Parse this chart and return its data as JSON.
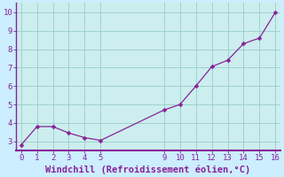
{
  "x": [
    0,
    1,
    2,
    3,
    4,
    5,
    9,
    10,
    11,
    12,
    13,
    14,
    15,
    16
  ],
  "y": [
    2.8,
    3.8,
    3.8,
    3.45,
    3.2,
    3.05,
    4.7,
    5.0,
    6.0,
    7.05,
    7.4,
    8.3,
    8.6,
    10.0
  ],
  "line_color": "#882299",
  "marker": "D",
  "marker_size": 2.5,
  "line_width": 0.9,
  "xlabel": "Windchill (Refroidissement éolien,°C)",
  "xlabel_color": "#882299",
  "xlabel_fontsize": 7.5,
  "plot_bg_color": "#cceeee",
  "outer_bg_color": "#cceeff",
  "grid_color": "#99cccc",
  "xlim": [
    -0.3,
    16.3
  ],
  "ylim": [
    2.5,
    10.5
  ],
  "xticks": [
    0,
    1,
    2,
    3,
    4,
    5,
    9,
    10,
    11,
    12,
    13,
    14,
    15,
    16
  ],
  "yticks": [
    3,
    4,
    5,
    6,
    7,
    8,
    9,
    10
  ],
  "tick_fontsize": 6.5,
  "tick_color": "#882299",
  "spine_color": "#882299",
  "axis_line_color": "#882299"
}
